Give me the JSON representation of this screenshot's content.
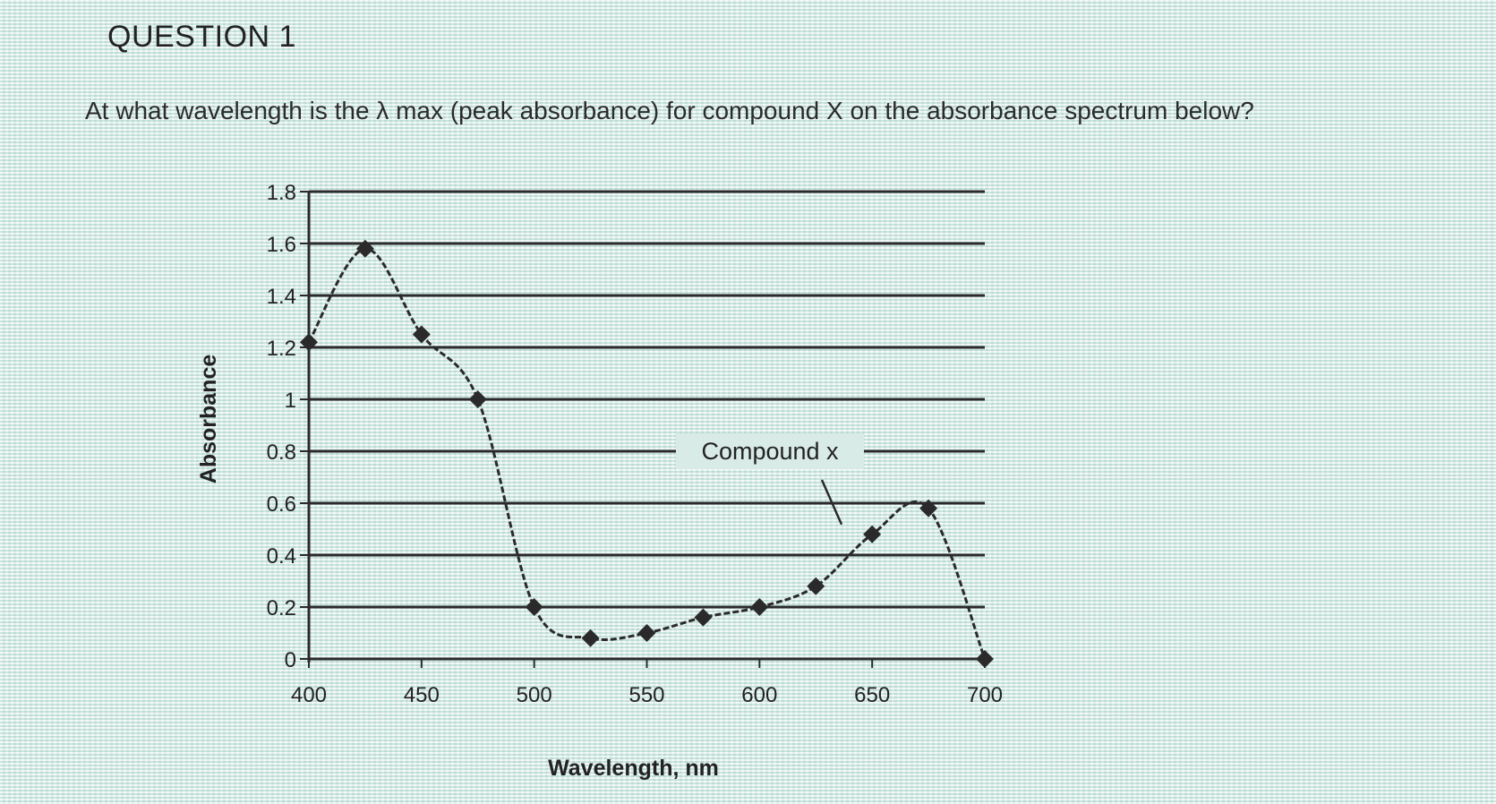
{
  "question": {
    "title": "QUESTION 1",
    "text": "At what wavelength is the λ max (peak absorbance) for compound X on the absorbance spectrum below?"
  },
  "chart_data": {
    "type": "line",
    "xlabel": "Wavelength, nm",
    "ylabel": "Absorbance",
    "xlim": [
      400,
      700
    ],
    "ylim": [
      0,
      1.8
    ],
    "x_ticks": [
      "400",
      "450",
      "500",
      "550",
      "600",
      "650",
      "700"
    ],
    "y_ticks": [
      "1.8",
      "1.6",
      "1.4",
      "1.2",
      "1",
      "0.8",
      "0.6",
      "0.4",
      "0.2",
      "0"
    ],
    "grid": true,
    "series": [
      {
        "x": [
          400,
          425,
          450,
          475,
          500,
          525,
          550,
          575,
          600,
          625,
          650,
          675,
          700
        ],
        "y": [
          1.22,
          1.58,
          1.25,
          1.0,
          0.2,
          0.08,
          0.1,
          0.16,
          0.2,
          0.28,
          0.48,
          0.58,
          0.0
        ]
      }
    ],
    "annotations": [
      {
        "text": "Compound x",
        "x": 675,
        "y": 0.58
      }
    ],
    "line_color": "#2a2a2a"
  }
}
